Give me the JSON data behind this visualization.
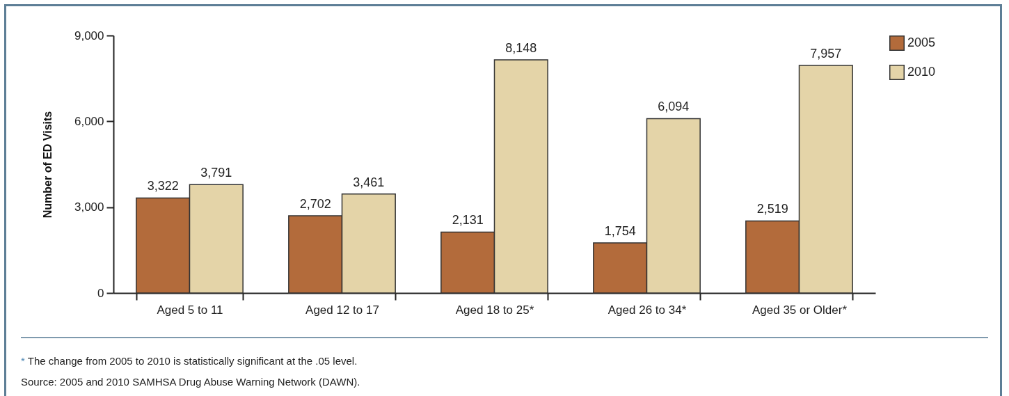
{
  "chart_data": {
    "type": "bar",
    "ylabel": "Number of ED Visits",
    "categories": [
      "Aged 5 to 11",
      "Aged 12 to 17",
      "Aged 18 to 25*",
      "Aged 26 to 34*",
      "Aged 35 or Older*"
    ],
    "series": [
      {
        "name": "2005",
        "color": "#b36b3b",
        "values": [
          3322,
          2702,
          2131,
          1754,
          2519
        ],
        "value_labels": [
          "3,322",
          "2,702",
          "2,131",
          "1,754",
          "2,519"
        ]
      },
      {
        "name": "2010",
        "color": "#e4d4a8",
        "values": [
          3791,
          3461,
          8148,
          6094,
          7957
        ],
        "value_labels": [
          "3,791",
          "3,461",
          "8,148",
          "6,094",
          "7,957"
        ]
      }
    ],
    "ylim": [
      0,
      9000
    ],
    "yticks": [
      0,
      {
        "value": 3000,
        "label": "3,000"
      },
      {
        "value": 6000,
        "label": "6,000"
      },
      {
        "value": 9000,
        "label": "9,000"
      }
    ],
    "grid": false,
    "legend": "right",
    "annotations": [
      "* The change from 2005 to 2010 is statistically significant at the .05 level.",
      "Source: 2005 and 2010 SAMHSA Drug Abuse Warning Network (DAWN)."
    ]
  }
}
